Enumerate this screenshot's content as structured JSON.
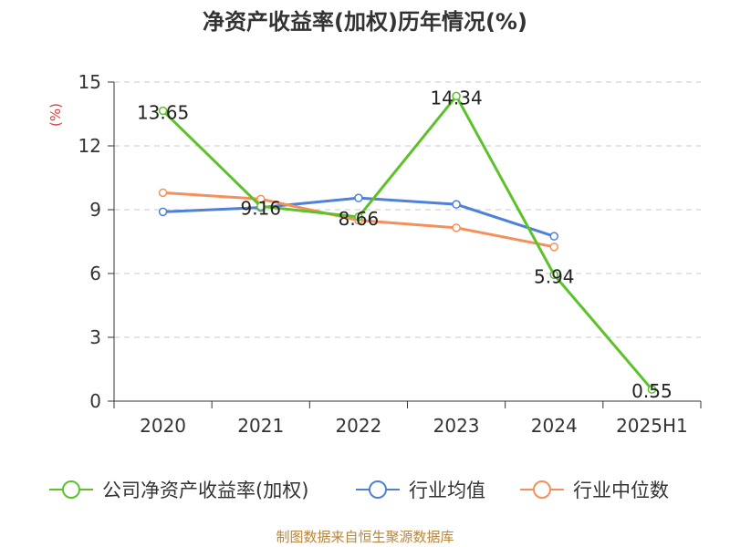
{
  "chart_data": {
    "type": "line",
    "title": "净资产收益率(加权)历年情况(%)",
    "ylabel": "(%)",
    "categories": [
      "2020",
      "2021",
      "2022",
      "2023",
      "2024",
      "2025H1"
    ],
    "ylim": [
      0,
      15
    ],
    "yticks": [
      0,
      3,
      6,
      9,
      12,
      15
    ],
    "grid": "horizontal dashed",
    "legend_position": "bottom",
    "series": [
      {
        "name": "公司净资产收益率(加权)",
        "color": "#5cc22a",
        "values": [
          13.65,
          9.16,
          8.66,
          14.34,
          5.94,
          0.55
        ],
        "labels": [
          "13.65",
          "9.16",
          "8.66",
          "14.34",
          "5.94",
          "0.55"
        ]
      },
      {
        "name": "行业均值",
        "color": "#4f81d8",
        "values": [
          8.9,
          9.1,
          9.55,
          9.25,
          7.75,
          null
        ]
      },
      {
        "name": "行业中位数",
        "color": "#f5905a",
        "values": [
          9.8,
          9.5,
          8.5,
          8.15,
          7.25,
          null
        ]
      }
    ]
  },
  "source": "制图数据来自恒生聚源数据库"
}
